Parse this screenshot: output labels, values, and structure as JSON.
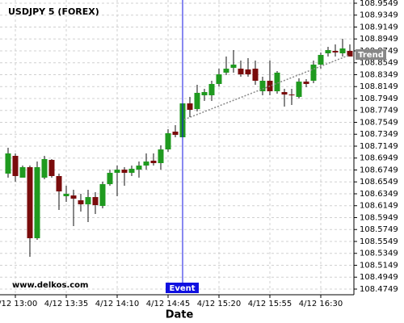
{
  "chart_data": {
    "type": "candlestick",
    "title": "USDJPY 5 (FOREX)",
    "x_label": "Date",
    "watermark": "www.delkos.com",
    "categories": [
      null,
      "4/12 13:00",
      null,
      null,
      null,
      null,
      null,
      null,
      "4/12 13:35",
      null,
      null,
      null,
      null,
      null,
      null,
      "4/12 14:10",
      null,
      null,
      null,
      null,
      null,
      null,
      "4/12 14:45",
      null,
      null,
      null,
      null,
      null,
      null,
      "4/12 15:20",
      null,
      null,
      null,
      null,
      null,
      null,
      "4/12 15:55",
      null,
      null,
      null,
      null,
      null,
      null,
      "4/12 16:30",
      null,
      null,
      null,
      null
    ],
    "open": [
      108.6688,
      108.6986,
      108.662,
      108.6796,
      108.5603,
      108.662,
      108.6918,
      108.6647,
      108.6308,
      108.6321,
      108.624,
      108.6172,
      108.6294,
      108.6145,
      108.6511,
      108.6701,
      108.6755,
      108.6701,
      108.6755,
      108.6823,
      108.6905,
      108.6864,
      108.7094,
      108.7393,
      108.7298,
      108.7867,
      108.7772,
      108.8003,
      108.8003,
      108.8193,
      108.8383,
      108.8464,
      108.845,
      108.8437,
      108.845,
      108.8071,
      108.8247,
      108.8071,
      108.8057,
      108.8016,
      108.7976,
      108.8233,
      108.8247,
      108.8518,
      108.8708,
      108.8749,
      108.8708,
      108.8749
    ],
    "high": [
      108.7122,
      108.7027,
      108.6823,
      108.6823,
      108.6891,
      108.6986,
      108.6932,
      108.6688,
      108.6484,
      108.6416,
      108.6349,
      108.6416,
      108.6376,
      108.6552,
      108.6755,
      108.6823,
      108.6796,
      108.6823,
      108.6891,
      108.7027,
      108.7027,
      108.7162,
      108.7433,
      108.7501,
      108.7908,
      108.7976,
      108.8179,
      108.8111,
      108.8247,
      108.845,
      108.8654,
      108.8762,
      108.8586,
      108.8627,
      108.8586,
      108.8315,
      108.8586,
      108.841,
      108.8111,
      108.8111,
      108.8288,
      108.8274,
      108.8586,
      108.8722,
      108.8817,
      108.8857,
      108.8952,
      108.8857
    ],
    "low": [
      108.662,
      108.6552,
      108.662,
      108.5291,
      108.5576,
      108.6593,
      108.662,
      108.6077,
      108.6213,
      108.5806,
      108.605,
      108.5874,
      108.601,
      108.6105,
      108.6484,
      108.6308,
      108.6484,
      108.6647,
      108.662,
      108.6755,
      108.6823,
      108.6755,
      108.7054,
      108.7298,
      108.7271,
      108.7637,
      108.7732,
      108.7908,
      108.7908,
      108.8152,
      108.8342,
      108.8383,
      108.8315,
      108.8315,
      108.8179,
      108.8003,
      108.8003,
      108.803,
      108.7813,
      108.784,
      108.7949,
      108.8139,
      108.8206,
      108.845,
      108.8654,
      108.8654,
      108.8654,
      108.8654
    ],
    "close": [
      108.7027,
      108.6647,
      108.6796,
      108.5603,
      108.6796,
      108.6932,
      108.6647,
      108.6389,
      108.6349,
      108.6267,
      108.6172,
      108.6294,
      108.6159,
      108.6511,
      108.6701,
      108.6755,
      108.6701,
      108.6769,
      108.6823,
      108.6891,
      108.6864,
      108.7094,
      108.7366,
      108.7338,
      108.7867,
      108.7759,
      108.8044,
      108.8057,
      108.8193,
      108.8355,
      108.845,
      108.8518,
      108.8355,
      108.8355,
      108.8247,
      108.8247,
      108.8071,
      108.8383,
      108.8016,
      108.8003,
      108.8233,
      108.8193,
      108.8518,
      108.8681,
      108.8762,
      108.8722,
      108.8789,
      108.8654
    ],
    "up_color": "#1f9a1f",
    "down_color": "#7a0c0c",
    "ylim": [
      108.4654,
      108.9603
    ],
    "yticks": [
      108.9549,
      108.9349,
      108.9149,
      108.8949,
      108.8749,
      108.8549,
      108.8349,
      108.8149,
      108.7949,
      108.7749,
      108.7549,
      108.7349,
      108.7149,
      108.6949,
      108.6749,
      108.6549,
      108.6349,
      108.6149,
      108.5949,
      108.5749,
      108.5549,
      108.5349,
      108.5149,
      108.4949,
      108.4749
    ],
    "grid": true,
    "event": {
      "label": "Event",
      "color": "#1010e0"
    },
    "trend": {
      "label": "Trend",
      "values": [
        108.7596,
        108.8681
      ],
      "color": "#888888"
    }
  }
}
